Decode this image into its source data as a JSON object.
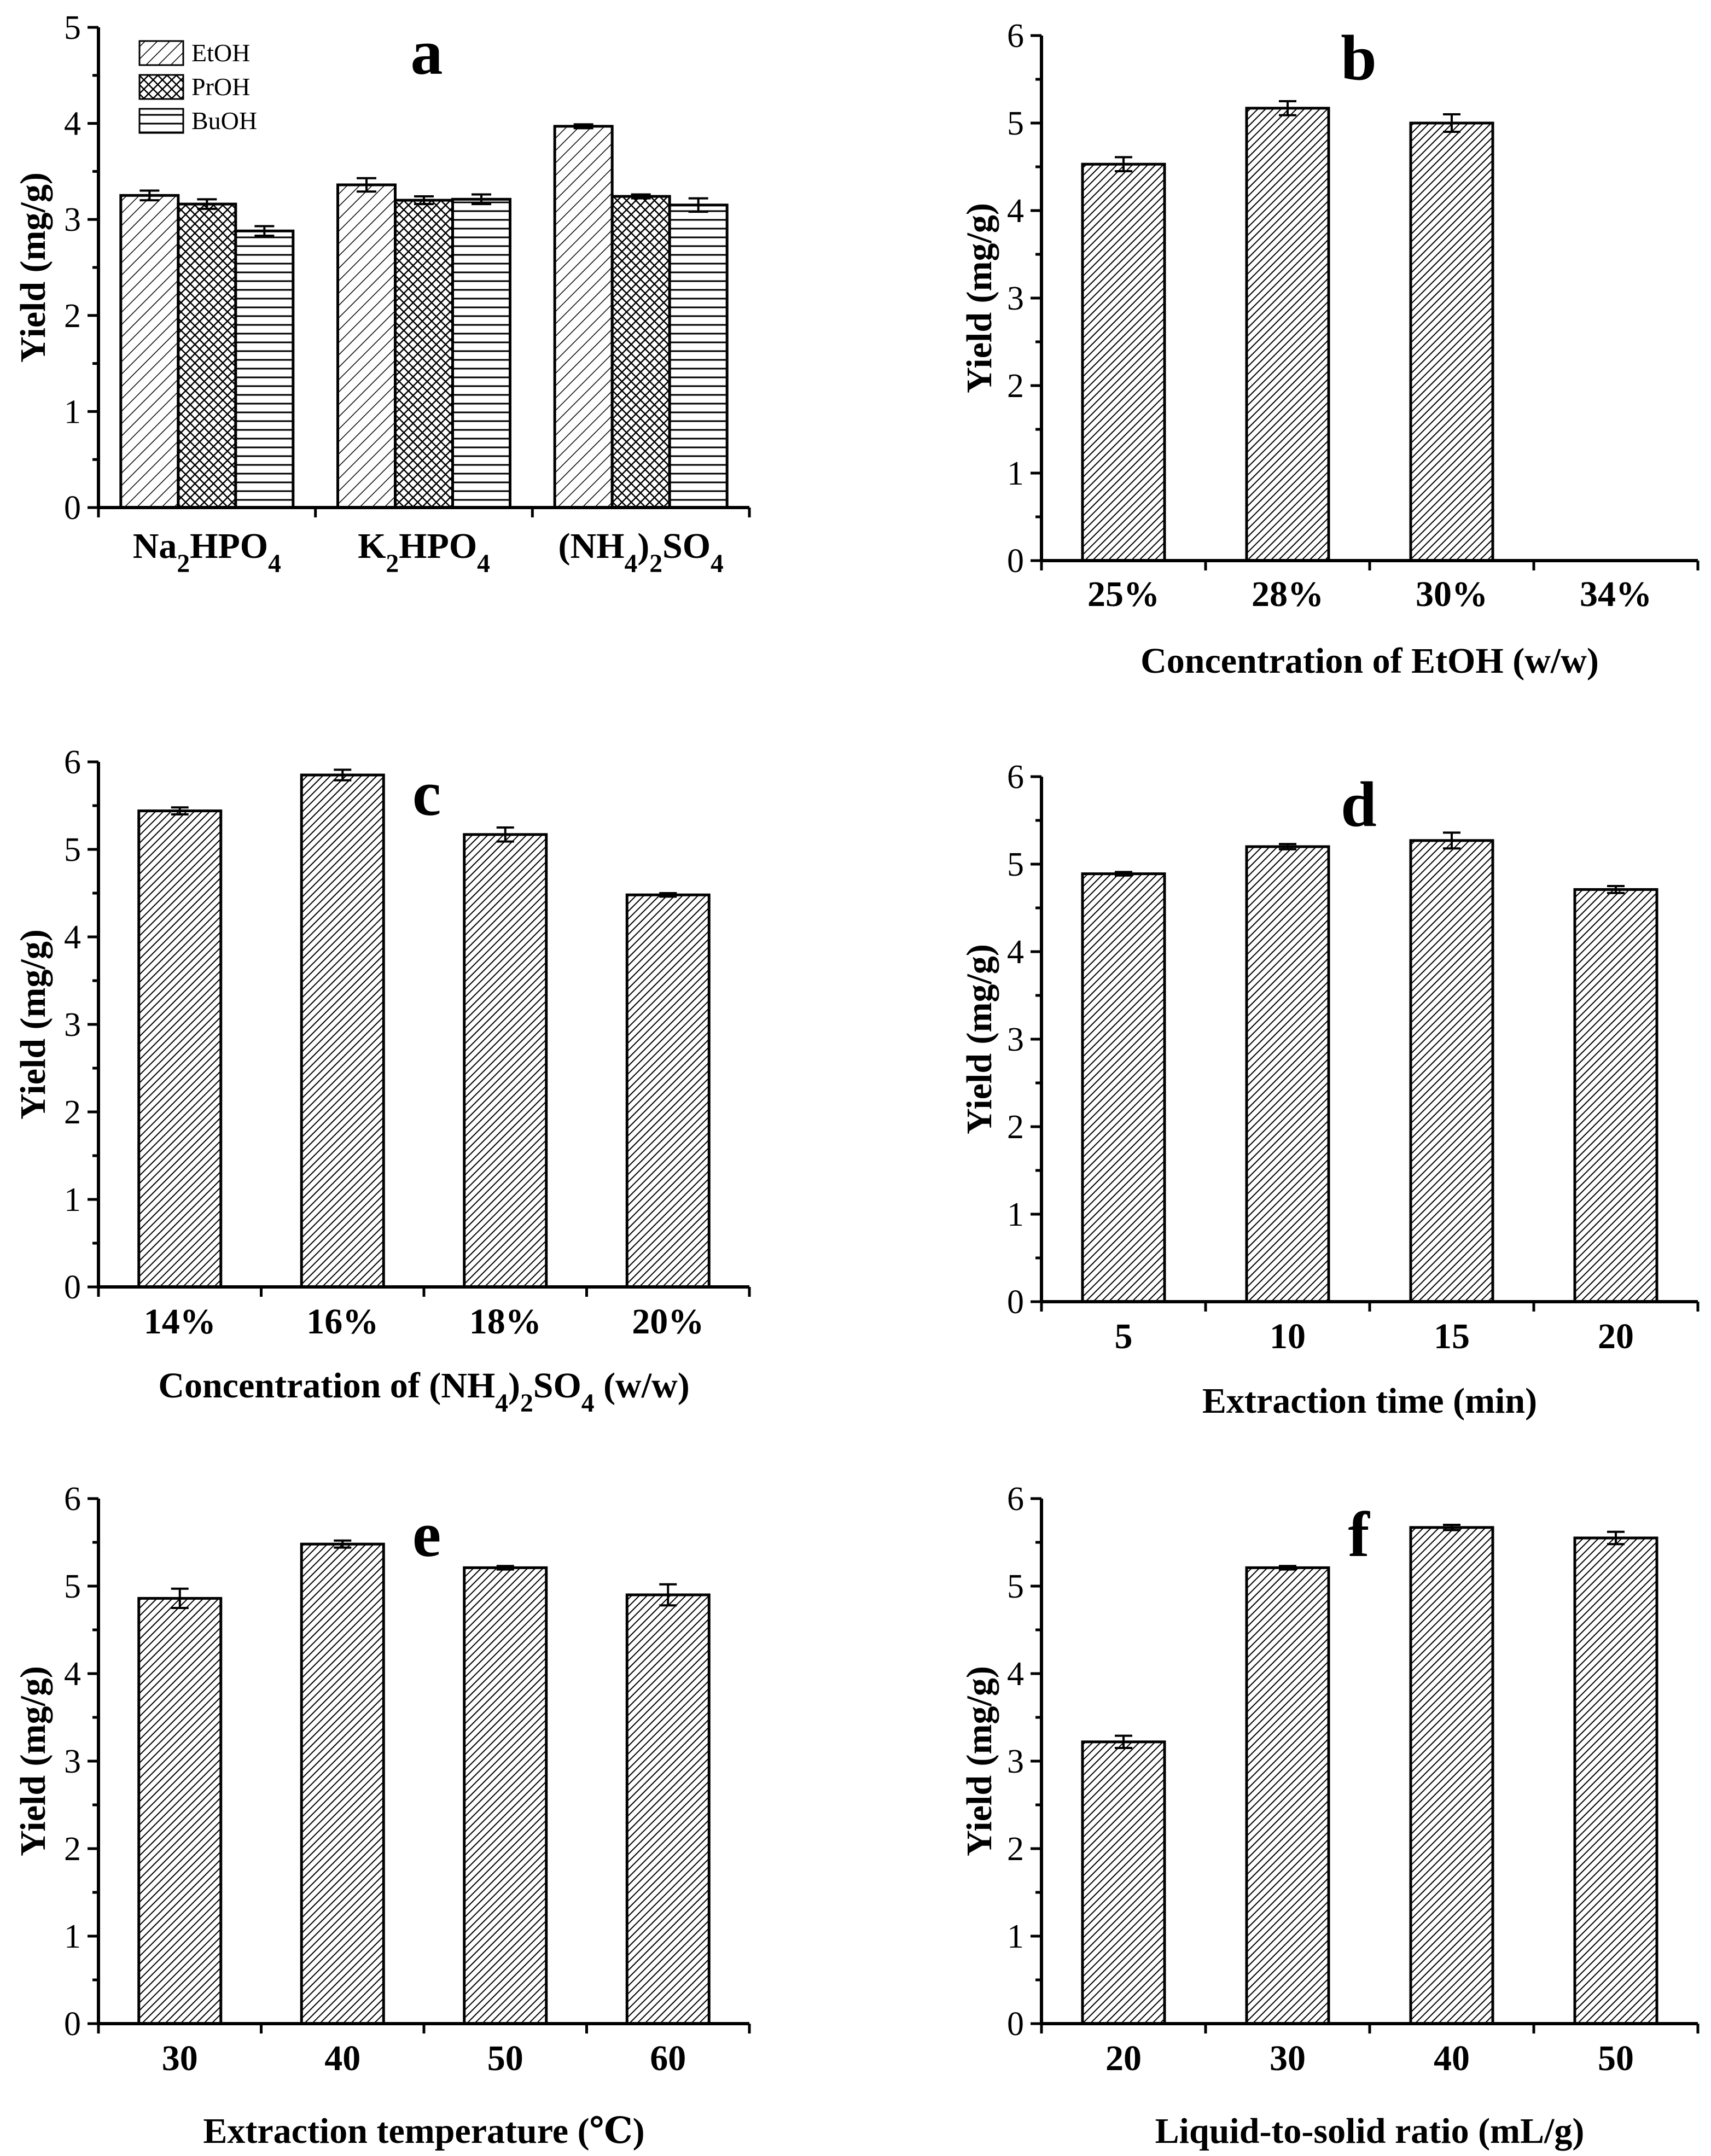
{
  "figure": {
    "panels": [
      {
        "letter": "a",
        "grouped": true,
        "xlabel": "",
        "ylabel": "Yield (mg/g)",
        "ylim": [
          0,
          5
        ],
        "yticks": [
          "0",
          "1",
          "2",
          "3",
          "4",
          "5"
        ],
        "categories": [
          "Na2HPO4",
          "K2HPO4",
          "(NH4)2SO4"
        ],
        "series": [
          {
            "name": "EtOH",
            "pattern": "diag",
            "values": [
              3.25,
              3.36,
              3.97
            ],
            "errors": [
              0.05,
              0.07,
              0.02
            ]
          },
          {
            "name": "PrOH",
            "pattern": "cross",
            "values": [
              3.16,
              3.2,
              3.24
            ],
            "errors": [
              0.05,
              0.04,
              0.02
            ]
          },
          {
            "name": "BuOH",
            "pattern": "horiz",
            "values": [
              2.88,
              3.21,
              3.15
            ],
            "errors": [
              0.05,
              0.05,
              0.07
            ]
          }
        ]
      },
      {
        "letter": "b",
        "xlabel": "Concentration of EtOH (w/w)",
        "ylabel": "Yield (mg/g)",
        "ylim": [
          0,
          6
        ],
        "yticks": [
          "0",
          "1",
          "2",
          "3",
          "4",
          "5",
          "6"
        ],
        "categories": [
          "25%",
          "28%",
          "30%",
          "34%"
        ],
        "values": [
          4.53,
          5.17,
          5.0,
          null
        ],
        "errors": [
          0.08,
          0.08,
          0.1,
          null
        ]
      },
      {
        "letter": "c",
        "xlabel": "Concentration of (NH4)2SO4 (w/w)",
        "ylabel": "Yield (mg/g)",
        "ylim": [
          0,
          6
        ],
        "yticks": [
          "0",
          "1",
          "2",
          "3",
          "4",
          "5",
          "6"
        ],
        "categories": [
          "14%",
          "16%",
          "18%",
          "20%"
        ],
        "values": [
          5.44,
          5.85,
          5.17,
          4.48
        ],
        "errors": [
          0.04,
          0.06,
          0.08,
          0.02
        ]
      },
      {
        "letter": "d",
        "xlabel": "Extraction time (min)",
        "ylabel": "Yield (mg/g)",
        "ylim": [
          0,
          6
        ],
        "yticks": [
          "0",
          "1",
          "2",
          "3",
          "4",
          "5",
          "6"
        ],
        "categories": [
          "5",
          "10",
          "15",
          "20"
        ],
        "values": [
          4.89,
          5.2,
          5.27,
          4.71
        ],
        "errors": [
          0.02,
          0.03,
          0.09,
          0.04
        ]
      },
      {
        "letter": "e",
        "xlabel": "Extraction temperature (℃)",
        "ylabel": "Yield (mg/g)",
        "ylim": [
          0,
          6
        ],
        "yticks": [
          "0",
          "1",
          "2",
          "3",
          "4",
          "5",
          "6"
        ],
        "categories": [
          "30",
          "40",
          "50",
          "60"
        ],
        "values": [
          4.86,
          5.48,
          5.21,
          4.9
        ],
        "errors": [
          0.11,
          0.04,
          0.02,
          0.12
        ]
      },
      {
        "letter": "f",
        "xlabel": "Liquid-to-solid ratio (mL/g)",
        "ylabel": "Yield (mg/g)",
        "ylim": [
          0,
          6
        ],
        "yticks": [
          "0",
          "1",
          "2",
          "3",
          "4",
          "5",
          "6"
        ],
        "categories": [
          "20",
          "30",
          "40",
          "50"
        ],
        "values": [
          3.22,
          5.21,
          5.67,
          5.55
        ],
        "errors": [
          0.07,
          0.02,
          0.03,
          0.07
        ]
      }
    ]
  },
  "chart_data": [
    {
      "type": "bar",
      "title": "a",
      "xlabel": "",
      "ylabel": "Yield (mg/g)",
      "ylim": [
        0,
        5
      ],
      "categories": [
        "Na2HPO4",
        "K2HPO4",
        "(NH4)2SO4"
      ],
      "series": [
        {
          "name": "EtOH",
          "values": [
            3.25,
            3.36,
            3.97
          ]
        },
        {
          "name": "PrOH",
          "values": [
            3.16,
            3.2,
            3.24
          ]
        },
        {
          "name": "BuOH",
          "values": [
            2.88,
            3.21,
            3.15
          ]
        }
      ],
      "legend": "top-left"
    },
    {
      "type": "bar",
      "title": "b",
      "xlabel": "Concentration of EtOH (w/w)",
      "ylabel": "Yield (mg/g)",
      "ylim": [
        0,
        6
      ],
      "categories": [
        "25%",
        "28%",
        "30%",
        "34%"
      ],
      "values": [
        4.53,
        5.17,
        5.0,
        null
      ]
    },
    {
      "type": "bar",
      "title": "c",
      "xlabel": "Concentration of (NH4)2SO4 (w/w)",
      "ylabel": "Yield (mg/g)",
      "ylim": [
        0,
        6
      ],
      "categories": [
        "14%",
        "16%",
        "18%",
        "20%"
      ],
      "values": [
        5.44,
        5.85,
        5.17,
        4.48
      ]
    },
    {
      "type": "bar",
      "title": "d",
      "xlabel": "Extraction time (min)",
      "ylabel": "Yield (mg/g)",
      "ylim": [
        0,
        6
      ],
      "categories": [
        "5",
        "10",
        "15",
        "20"
      ],
      "values": [
        4.89,
        5.2,
        5.27,
        4.71
      ]
    },
    {
      "type": "bar",
      "title": "e",
      "xlabel": "Extraction temperature (℃)",
      "ylabel": "Yield (mg/g)",
      "ylim": [
        0,
        6
      ],
      "categories": [
        "30",
        "40",
        "50",
        "60"
      ],
      "values": [
        4.86,
        5.48,
        5.21,
        4.9
      ]
    },
    {
      "type": "bar",
      "title": "f",
      "xlabel": "Liquid-to-solid ratio (mL/g)",
      "ylabel": "Yield (mg/g)",
      "ylim": [
        0,
        6
      ],
      "categories": [
        "20",
        "30",
        "40",
        "50"
      ],
      "values": [
        3.22,
        5.21,
        5.67,
        5.55
      ]
    }
  ]
}
